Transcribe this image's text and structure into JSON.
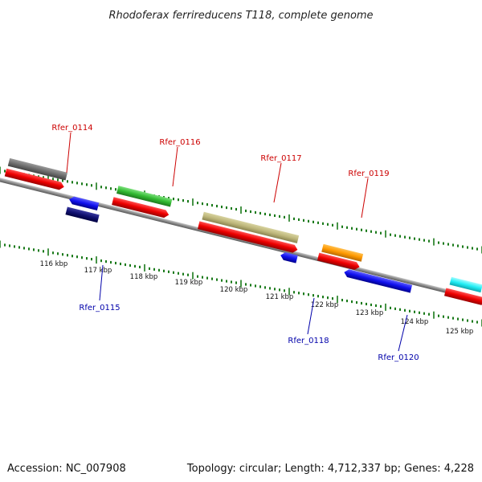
{
  "title": "Rhodoferax ferrireducens T118, complete genome",
  "footer": {
    "accession": "Accession: NC_007908",
    "stats": "Topology: circular; Length: 4,712,337 bp; Genes: 4,228"
  },
  "colors": {
    "label_forward": "#cc0000",
    "label_reverse": "#0000aa",
    "tick": "#1a7a1a",
    "backbone": "#8a8a8a"
  },
  "scale_kbp": [
    "116 kbp",
    "117 kbp",
    "118 kbp",
    "119 kbp",
    "120 kbp",
    "121 kbp",
    "122 kbp",
    "123 kbp",
    "124 kbp",
    "125 kbp"
  ],
  "gene_labels": [
    {
      "text": "Rfer_0114",
      "strand": "forward"
    },
    {
      "text": "Rfer_0115",
      "strand": "reverse"
    },
    {
      "text": "Rfer_0116",
      "strand": "forward"
    },
    {
      "text": "Rfer_0117",
      "strand": "forward"
    },
    {
      "text": "Rfer_0118",
      "strand": "reverse"
    },
    {
      "text": "Rfer_0119",
      "strand": "forward"
    },
    {
      "text": "Rfer_0120",
      "strand": "reverse"
    }
  ]
}
